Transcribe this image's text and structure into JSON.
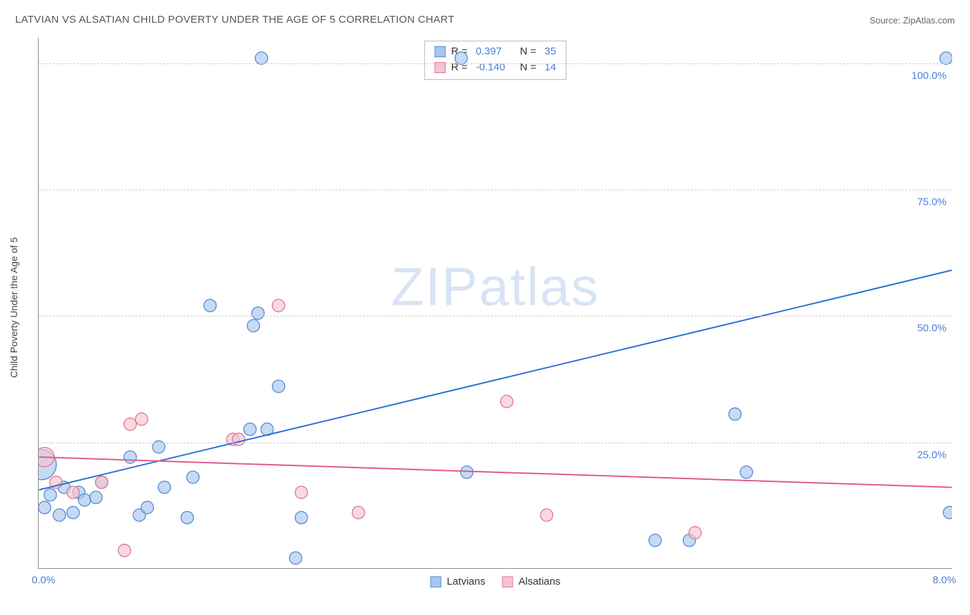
{
  "title": "LATVIAN VS ALSATIAN CHILD POVERTY UNDER THE AGE OF 5 CORRELATION CHART",
  "source_label": "Source:",
  "source_value": "ZipAtlas.com",
  "ylabel": "Child Poverty Under the Age of 5",
  "watermark_a": "ZIP",
  "watermark_b": "atlas",
  "chart": {
    "type": "scatter",
    "background_color": "#ffffff",
    "grid_color": "#cccccc",
    "axis_color": "#888888",
    "xlim": [
      0,
      8
    ],
    "ylim": [
      0,
      105
    ],
    "xtick_labels": [
      {
        "x": 0.0,
        "label": "0.0%"
      },
      {
        "x": 8.0,
        "label": "8.0%"
      }
    ],
    "ytick_labels": [
      {
        "y": 25,
        "label": "25.0%"
      },
      {
        "y": 50,
        "label": "50.0%"
      },
      {
        "y": 75,
        "label": "75.0%"
      },
      {
        "y": 100,
        "label": "100.0%"
      }
    ],
    "gridlines_y": [
      25,
      50,
      75,
      100
    ],
    "label_fontsize": 15,
    "label_color": "#4a7fd8",
    "marker_radius": 9,
    "marker_stroke_width": 1.4,
    "line_width": 2,
    "series": [
      {
        "name": "Latvians",
        "fill": "#a8c6ee",
        "stroke": "#5a8fd6",
        "points": [
          [
            0.02,
            20.5,
            22
          ],
          [
            0.05,
            12.0,
            9
          ],
          [
            0.1,
            14.5,
            9
          ],
          [
            0.18,
            10.5,
            9
          ],
          [
            0.22,
            16.0,
            9
          ],
          [
            0.3,
            11.0,
            9
          ],
          [
            0.35,
            15.0,
            9
          ],
          [
            0.4,
            13.5,
            9
          ],
          [
            0.5,
            14.0,
            9
          ],
          [
            0.55,
            17.0,
            9
          ],
          [
            0.8,
            22.0,
            9
          ],
          [
            0.88,
            10.5,
            9
          ],
          [
            0.95,
            12.0,
            9
          ],
          [
            1.05,
            24.0,
            9
          ],
          [
            1.1,
            16.0,
            9
          ],
          [
            1.3,
            10.0,
            9
          ],
          [
            1.35,
            18.0,
            9
          ],
          [
            1.5,
            52.0,
            9
          ],
          [
            1.85,
            27.5,
            9
          ],
          [
            1.88,
            48.0,
            9
          ],
          [
            1.92,
            50.5,
            9
          ],
          [
            1.95,
            101.0,
            9
          ],
          [
            2.0,
            27.5,
            9
          ],
          [
            2.1,
            36.0,
            9
          ],
          [
            2.25,
            2.0,
            9
          ],
          [
            2.3,
            10.0,
            9
          ],
          [
            3.7,
            101.0,
            9
          ],
          [
            3.75,
            19.0,
            9
          ],
          [
            5.4,
            5.5,
            9
          ],
          [
            5.7,
            5.5,
            9
          ],
          [
            6.1,
            30.5,
            9
          ],
          [
            6.2,
            19.0,
            9
          ],
          [
            7.95,
            101.0,
            9
          ],
          [
            7.98,
            11.0,
            9
          ]
        ],
        "regression": {
          "y_at_x0": 15.5,
          "y_at_xmax": 59.0
        }
      },
      {
        "name": "Alsatians",
        "fill": "#f4c4d0",
        "stroke": "#e27b9a",
        "points": [
          [
            0.05,
            22.0,
            14
          ],
          [
            0.15,
            17.0,
            9
          ],
          [
            0.3,
            15.0,
            9
          ],
          [
            0.55,
            17.0,
            9
          ],
          [
            0.75,
            3.5,
            9
          ],
          [
            0.8,
            28.5,
            9
          ],
          [
            0.9,
            29.5,
            9
          ],
          [
            1.7,
            25.5,
            9
          ],
          [
            1.75,
            25.5,
            9
          ],
          [
            2.1,
            52.0,
            9
          ],
          [
            2.3,
            15.0,
            9
          ],
          [
            2.8,
            11.0,
            9
          ],
          [
            4.1,
            33.0,
            9
          ],
          [
            4.45,
            10.5,
            9
          ],
          [
            5.75,
            7.0,
            9
          ]
        ],
        "regression": {
          "y_at_x0": 22.0,
          "y_at_xmax": 16.0
        }
      }
    ],
    "legend_top": [
      {
        "fill": "#a8c6ee",
        "stroke": "#5a8fd6",
        "r_label": "R =",
        "r_value": "0.397",
        "n_label": "N =",
        "n_value": "35"
      },
      {
        "fill": "#f4c4d0",
        "stroke": "#e27b9a",
        "r_label": "R =",
        "r_value": "-0.140",
        "n_label": "N =",
        "n_value": "14"
      }
    ],
    "regression_colors": {
      "Latvians": "#2b6fd6",
      "Alsatians": "#e05a8a"
    }
  }
}
